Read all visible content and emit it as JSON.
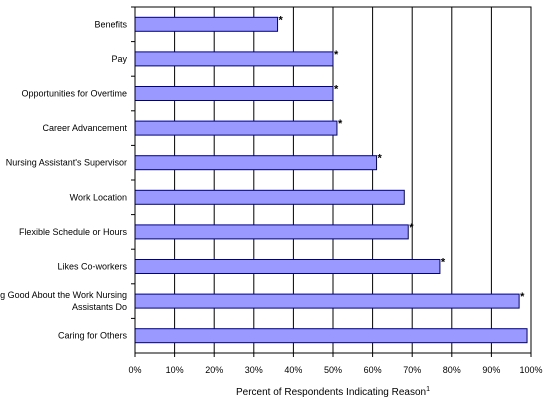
{
  "chart_data": {
    "type": "bar",
    "orientation": "horizontal",
    "categories": [
      "Benefits",
      "Pay",
      "Opportunities for Overtime",
      "Career Advancement",
      "Nursing Assistant's Supervisor",
      "Work Location",
      "Flexible Schedule or Hours",
      "Likes Co-workers",
      "Feeling Good About the Work Nursing Assistants Do",
      "Caring for Others"
    ],
    "category_label_lines": [
      [
        "Benefits"
      ],
      [
        "Pay"
      ],
      [
        "Opportunities for Overtime"
      ],
      [
        "Career Advancement"
      ],
      [
        "Nursing Assistant's Supervisor"
      ],
      [
        "Work Location"
      ],
      [
        "Flexible Schedule or Hours"
      ],
      [
        "Likes Co-workers"
      ],
      [
        "Feeling Good About the Work Nursing",
        "Assistants Do"
      ],
      [
        "Caring for Others"
      ]
    ],
    "values": [
      36,
      50,
      50,
      51,
      61,
      68,
      69,
      77,
      97,
      99
    ],
    "significant": [
      true,
      true,
      true,
      true,
      true,
      false,
      true,
      true,
      true,
      false
    ],
    "significance_marker": "*",
    "xlabel": "Percent of Respondents Indicating Reason",
    "xlabel_superscript": "1",
    "xlim": [
      0,
      100
    ],
    "x_ticks": [
      0,
      10,
      20,
      30,
      40,
      50,
      60,
      70,
      80,
      90,
      100
    ],
    "x_tick_labels": [
      "0%",
      "10%",
      "20%",
      "30%",
      "40%",
      "50%",
      "60%",
      "70%",
      "80%",
      "90%",
      "100%"
    ],
    "grid": "vertical",
    "bar_color": "#9999ff",
    "bar_edge_color": "#000080",
    "legend": false
  }
}
